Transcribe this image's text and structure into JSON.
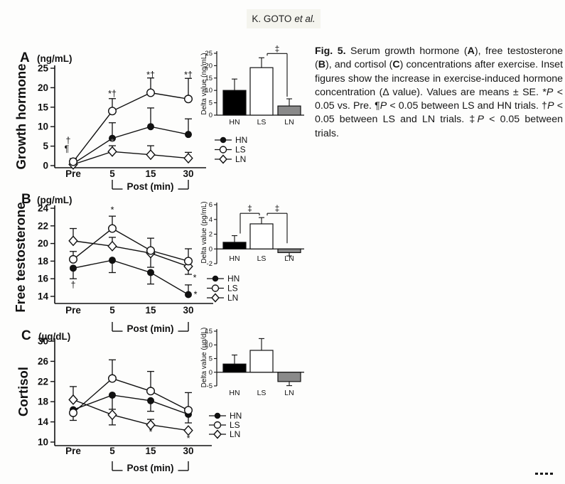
{
  "page": {
    "header": {
      "author": "K. GOTO",
      "etal": "et al."
    },
    "footer_marks": [
      "dot",
      "dot",
      "dot",
      "dot"
    ]
  },
  "caption": {
    "segments": [
      {
        "text": "Fig. 5.",
        "bold": true
      },
      {
        "text": " Serum growth hormone ("
      },
      {
        "text": "A",
        "bold": true
      },
      {
        "text": "), free testosterone ("
      },
      {
        "text": "B",
        "bold": true
      },
      {
        "text": "), and cortisol ("
      },
      {
        "text": "C",
        "bold": true
      },
      {
        "text": ") concentrations after exercise. Inset figures show the increase in exercise-induced hormone concentration (Δ value). Values are means ± SE. *"
      },
      {
        "text": "P",
        "italic": true
      },
      {
        "text": " < 0.05 vs. Pre. ¶"
      },
      {
        "text": "P",
        "italic": true
      },
      {
        "text": " < 0.05 between LS and HN trials. †"
      },
      {
        "text": "P",
        "italic": true
      },
      {
        "text": " < 0.05 between LS and LN trials. ‡"
      },
      {
        "text": "P",
        "italic": true
      },
      {
        "text": " < 0.05 between trials."
      }
    ]
  },
  "colors": {
    "ink": "#111111",
    "bar_HN": "#000000",
    "bar_LS": "#ffffff",
    "bar_LN": "#8a8a8a",
    "faded_star": "#8c8c8c"
  },
  "chart_data": [
    {
      "id": "A",
      "type": "line",
      "panel_label": "A",
      "unit": "(ng/mL)",
      "ylabel": "Growth hormone",
      "x_categories": [
        "Pre",
        "5",
        "15",
        "30"
      ],
      "x_bracket_label": "Post (min)",
      "ylim": [
        0,
        25
      ],
      "yticks": [
        0,
        5,
        10,
        15,
        20,
        25
      ],
      "series": [
        {
          "name": "HN",
          "marker": "filled-circle",
          "values": [
            0.5,
            7.0,
            10.0,
            8.0
          ],
          "err_up": [
            0.4,
            4.0,
            4.8,
            4.0
          ],
          "err_down": [
            0,
            0,
            0,
            0
          ]
        },
        {
          "name": "LS",
          "marker": "open-circle",
          "values": [
            1.0,
            14.0,
            18.7,
            17.1
          ],
          "err_up": [
            0.8,
            3.2,
            3.8,
            5.3
          ],
          "err_down": [
            0,
            0,
            0,
            0
          ]
        },
        {
          "name": "LN",
          "marker": "open-diamond",
          "values": [
            0.3,
            3.6,
            2.8,
            1.9
          ],
          "err_up": [
            0.3,
            1.5,
            2.3,
            1.5
          ],
          "err_down": [
            0,
            0,
            0,
            0
          ]
        }
      ],
      "annotations": [
        {
          "text": "†",
          "xi": 0,
          "val": 6.4,
          "dx": -7
        },
        {
          "text": "¶",
          "xi": 0,
          "val": 4.3,
          "dx": -9
        },
        {
          "text": "*†",
          "xi": 1,
          "val": 18.4
        },
        {
          "text": "*",
          "xi": 1,
          "val": 6.0,
          "color": "#8c8c8c"
        },
        {
          "text": "*†",
          "xi": 2,
          "val": 23.3
        },
        {
          "text": "*†",
          "xi": 3,
          "val": 23.3
        }
      ],
      "inset": {
        "type": "bar",
        "ylabel": "Delta value (ng/mL)",
        "ylim": [
          0,
          25
        ],
        "yticks": [
          0,
          5,
          10,
          15,
          20,
          25
        ],
        "categories": [
          "HN",
          "LS",
          "LN"
        ],
        "values": [
          10.0,
          19.2,
          3.7
        ],
        "errors": [
          4.6,
          4.0,
          2.9
        ],
        "sig_brackets": [
          {
            "from": "LS",
            "to": "LN",
            "label": "‡"
          }
        ]
      },
      "legend": [
        "HN",
        "LS",
        "LN"
      ]
    },
    {
      "id": "B",
      "type": "line",
      "panel_label": "B",
      "unit": "(pg/mL)",
      "ylabel": "Free testosterone",
      "x_categories": [
        "Pre",
        "5",
        "15",
        "30"
      ],
      "x_bracket_label": "Post (min)",
      "ylim": [
        14,
        24
      ],
      "yticks": [
        14,
        16,
        18,
        20,
        22,
        24
      ],
      "series": [
        {
          "name": "HN",
          "marker": "filled-circle",
          "values": [
            17.2,
            18.1,
            16.7,
            14.2
          ],
          "err_up": [
            0,
            0,
            0,
            1.1
          ],
          "err_down": [
            1.2,
            1.4,
            1.3,
            0
          ]
        },
        {
          "name": "LS",
          "marker": "open-circle",
          "values": [
            18.2,
            21.7,
            19.2,
            18.0
          ],
          "err_up": [
            0.9,
            1.4,
            1.4,
            1.4
          ],
          "err_down": [
            0,
            0,
            0,
            0
          ]
        },
        {
          "name": "LN",
          "marker": "open-diamond",
          "values": [
            20.3,
            19.7,
            18.9,
            17.4
          ],
          "err_up": [
            1.4,
            1.0,
            0,
            0
          ],
          "err_down": [
            0,
            0,
            1.6,
            0.9
          ]
        }
      ],
      "annotations": [
        {
          "text": "*",
          "xi": 1,
          "val": 23.8
        },
        {
          "text": "†",
          "xi": 0,
          "val": 15.3
        },
        {
          "text": "*",
          "xi": 3,
          "val": 16.1,
          "dx": 9
        },
        {
          "text": "*",
          "xi": 3,
          "val": 14.2,
          "dx": 10
        }
      ],
      "inset": {
        "type": "bar",
        "ylabel": "Delta value (pg/mL)",
        "ylim": [
          -2,
          6
        ],
        "yticks": [
          -2,
          0,
          2,
          4,
          6
        ],
        "categories": [
          "HN",
          "LS",
          "LN"
        ],
        "values": [
          0.9,
          3.4,
          -0.5
        ],
        "errors": [
          0.9,
          0.85,
          0.45
        ],
        "sig_brackets": [
          {
            "from": "HN",
            "to": "LS",
            "label": "‡"
          },
          {
            "from": "LS",
            "to": "LN",
            "label": "‡"
          }
        ]
      },
      "legend": [
        "HN",
        "LS",
        "LN"
      ]
    },
    {
      "id": "C",
      "type": "line",
      "panel_label": "C",
      "unit": "(µg/dL)",
      "ylabel": "Cortisol",
      "x_categories": [
        "Pre",
        "5",
        "15",
        "30"
      ],
      "x_bracket_label": "Post (min)",
      "ylim": [
        10,
        30
      ],
      "yticks": [
        10,
        14,
        18,
        22,
        26,
        30
      ],
      "series": [
        {
          "name": "HN",
          "marker": "filled-circle",
          "values": [
            16.4,
            19.3,
            18.2,
            15.5
          ],
          "err_up": [
            0,
            0,
            0,
            0
          ],
          "err_down": [
            0,
            2.8,
            2.1,
            1.7
          ]
        },
        {
          "name": "LS",
          "marker": "open-circle",
          "values": [
            15.8,
            22.6,
            20.1,
            16.3
          ],
          "err_up": [
            0,
            3.7,
            3.9,
            3.5
          ],
          "err_down": [
            1.5,
            0,
            0,
            0
          ]
        },
        {
          "name": "LN",
          "marker": "open-diamond",
          "values": [
            18.4,
            15.4,
            13.4,
            12.3
          ],
          "err_up": [
            2.6,
            0,
            1.1,
            0
          ],
          "err_down": [
            0,
            2.0,
            0,
            0
          ]
        }
      ],
      "annotations": [
        {
          "text": "*",
          "xi": 2,
          "val": 12.0
        },
        {
          "text": "*",
          "xi": 3,
          "val": 10.7
        }
      ],
      "inset": {
        "type": "bar",
        "ylabel": "Delta value (µg/dL)",
        "ylim": [
          -5,
          15
        ],
        "yticks": [
          -5,
          0,
          5,
          10,
          15
        ],
        "categories": [
          "HN",
          "LS",
          "LN"
        ],
        "values": [
          3.0,
          8.0,
          -3.4
        ],
        "errors": [
          3.3,
          4.3,
          1.5
        ],
        "sig_brackets": []
      },
      "legend": [
        "HN",
        "LS",
        "LN"
      ]
    }
  ]
}
